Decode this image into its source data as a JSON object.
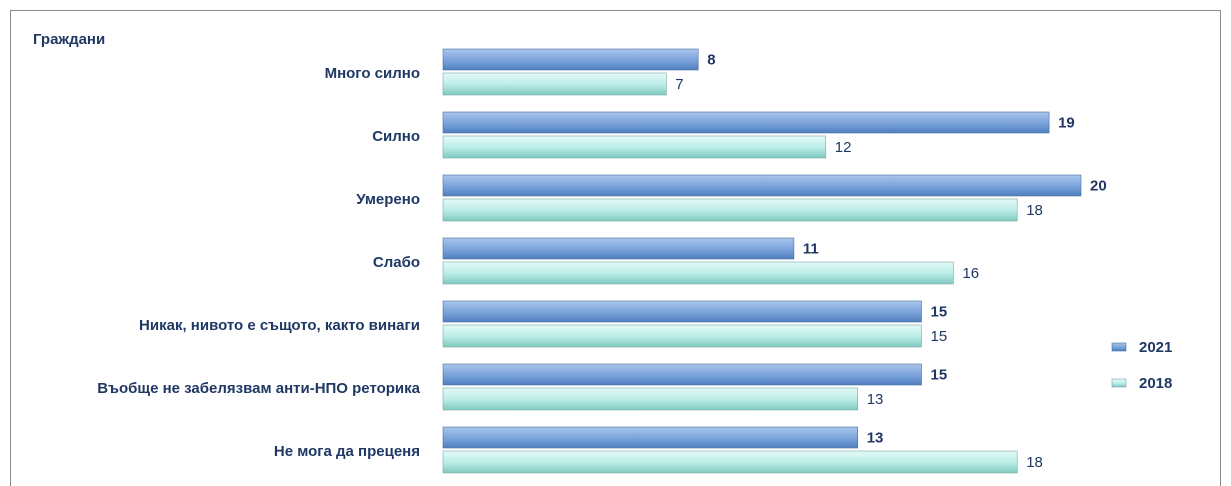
{
  "chart_data": {
    "type": "hbar",
    "title": "Граждани",
    "categories": [
      "Много силно",
      "Силно",
      "Умерено",
      "Слабо",
      "Никак, нивото е същото, както винаги",
      "Въобще не забелязвам анти-НПО реторика",
      "Не мога да преценя"
    ],
    "series": [
      {
        "name": "2021",
        "color": "#6f9bd6",
        "values": [
          8,
          19,
          20,
          11,
          15,
          15,
          13
        ]
      },
      {
        "name": "2018",
        "color": "#bdeee8",
        "values": [
          7,
          12,
          18,
          16,
          15,
          13,
          18
        ]
      }
    ],
    "legend": "right"
  }
}
